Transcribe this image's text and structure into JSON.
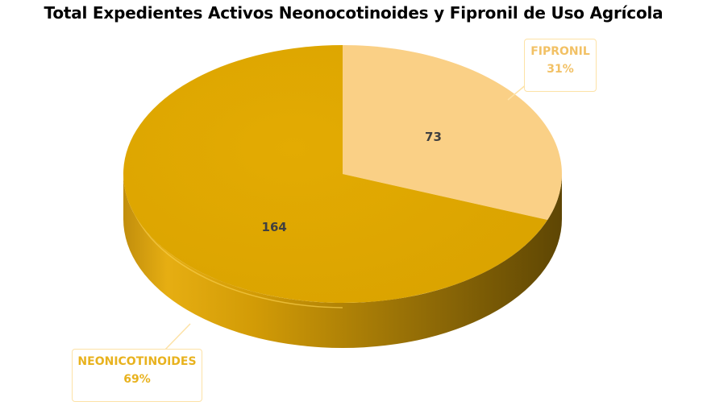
{
  "chart_data": {
    "type": "pie",
    "title": "Total Expedientes Activos Neonocotinoides y Fipronil de Uso Agrícola",
    "slices": [
      {
        "label": "FIPRONIL",
        "value": 73,
        "percent": "31%",
        "color": "#fad086",
        "label_color": "#f2c165"
      },
      {
        "label": "NEONICOTINOIDES",
        "value": 164,
        "percent": "69%",
        "color": "#e0a800",
        "label_color": "#e8b21e"
      }
    ],
    "style": "3d"
  }
}
